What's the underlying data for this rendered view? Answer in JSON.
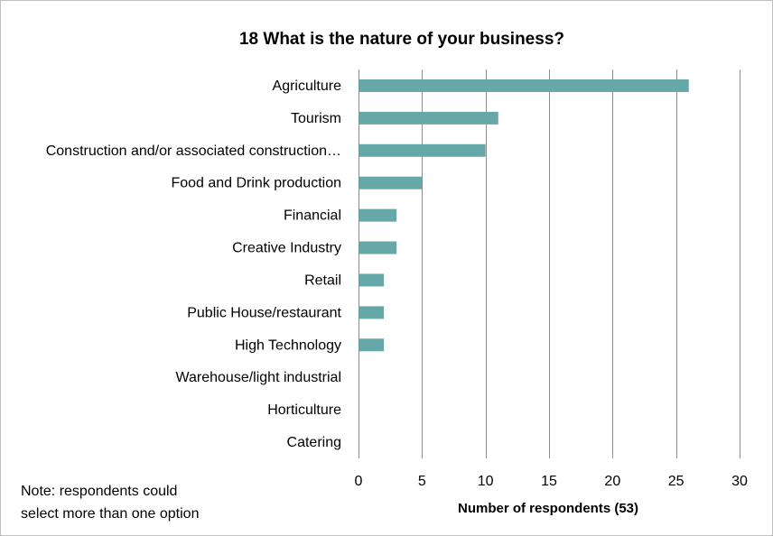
{
  "chart_data": {
    "type": "bar",
    "orientation": "horizontal",
    "title": "18 What is the nature of your business?",
    "categories": [
      "Agriculture",
      "Tourism",
      "Construction and/or associated construction…",
      "Food and Drink production",
      "Financial",
      "Creative Industry",
      "Retail",
      "Public House/restaurant",
      "High Technology",
      "Warehouse/light industrial",
      "Horticulture",
      "Catering"
    ],
    "values": [
      26,
      11,
      10,
      5,
      3,
      3,
      2,
      2,
      2,
      0,
      0,
      0
    ],
    "xlabel": "Number of respondents (53)",
    "ylabel": "",
    "xlim": [
      0,
      30
    ],
    "xticks": [
      0,
      5,
      10,
      15,
      20,
      25,
      30
    ],
    "grid": true,
    "bar_color": "#66a8a8",
    "note_lines": [
      "Note: respondents could",
      "select more than one option"
    ]
  }
}
